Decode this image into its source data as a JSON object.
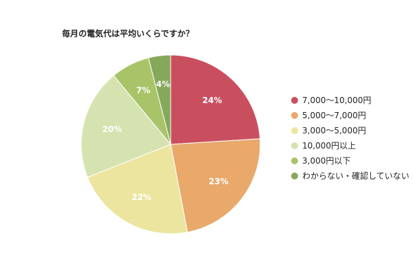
{
  "chart_data": {
    "type": "pie",
    "title": "毎月の電気代は平均いくらですか？",
    "legend_position": "right",
    "slices": [
      {
        "label": "7,000〜10,000円",
        "value": 24,
        "display": "24%",
        "color": "#c94f5f"
      },
      {
        "label": "5,000〜7,000円",
        "value": 23,
        "display": "23%",
        "color": "#e8a96a"
      },
      {
        "label": "3,000〜5,000円",
        "value": 22,
        "display": "22%",
        "color": "#ece5a0"
      },
      {
        "label": "10,000円以上",
        "value": 20,
        "display": "20%",
        "color": "#d5e3b0"
      },
      {
        "label": "3,000円以下",
        "value": 7,
        "display": "7%",
        "color": "#a9c468"
      },
      {
        "label": "わからない・確認していない",
        "value": 4,
        "display": "4%",
        "color": "#85a95a"
      }
    ]
  }
}
